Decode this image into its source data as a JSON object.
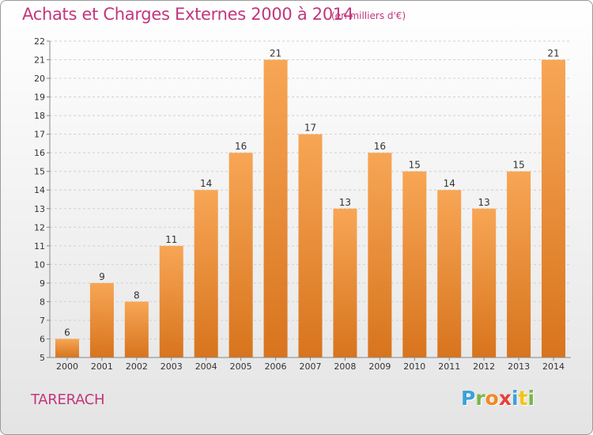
{
  "title": "Achats et Charges Externes 2000 à 2014",
  "subtitle": "(en milliers d'€)",
  "commune": "TARERACH",
  "logo": {
    "letters": [
      "P",
      "r",
      "o",
      "x",
      "i",
      "t",
      "i"
    ],
    "colors": [
      "#3aa1d8",
      "#7ab648",
      "#f08a24",
      "#e8403a",
      "#3aa1d8",
      "#f2c417",
      "#7ab648"
    ]
  },
  "colors": {
    "title": "#c2377b",
    "bar_top": "#f7a655",
    "bar_bottom": "#d8741d"
  },
  "chart_data": {
    "type": "bar",
    "title": "Achats et Charges Externes 2000 à 2014",
    "subtitle": "(en milliers d'€)",
    "categories": [
      "2000",
      "2001",
      "2002",
      "2003",
      "2004",
      "2005",
      "2006",
      "2007",
      "2008",
      "2009",
      "2010",
      "2011",
      "2012",
      "2013",
      "2014"
    ],
    "values": [
      6,
      9,
      8,
      11,
      14,
      16,
      21,
      17,
      13,
      16,
      15,
      14,
      13,
      15,
      21
    ],
    "ylim": [
      5,
      22
    ],
    "yticks": [
      5,
      6,
      7,
      8,
      9,
      10,
      11,
      12,
      13,
      14,
      15,
      16,
      17,
      18,
      19,
      20,
      21,
      22
    ],
    "grid": true,
    "data_labels": true
  }
}
